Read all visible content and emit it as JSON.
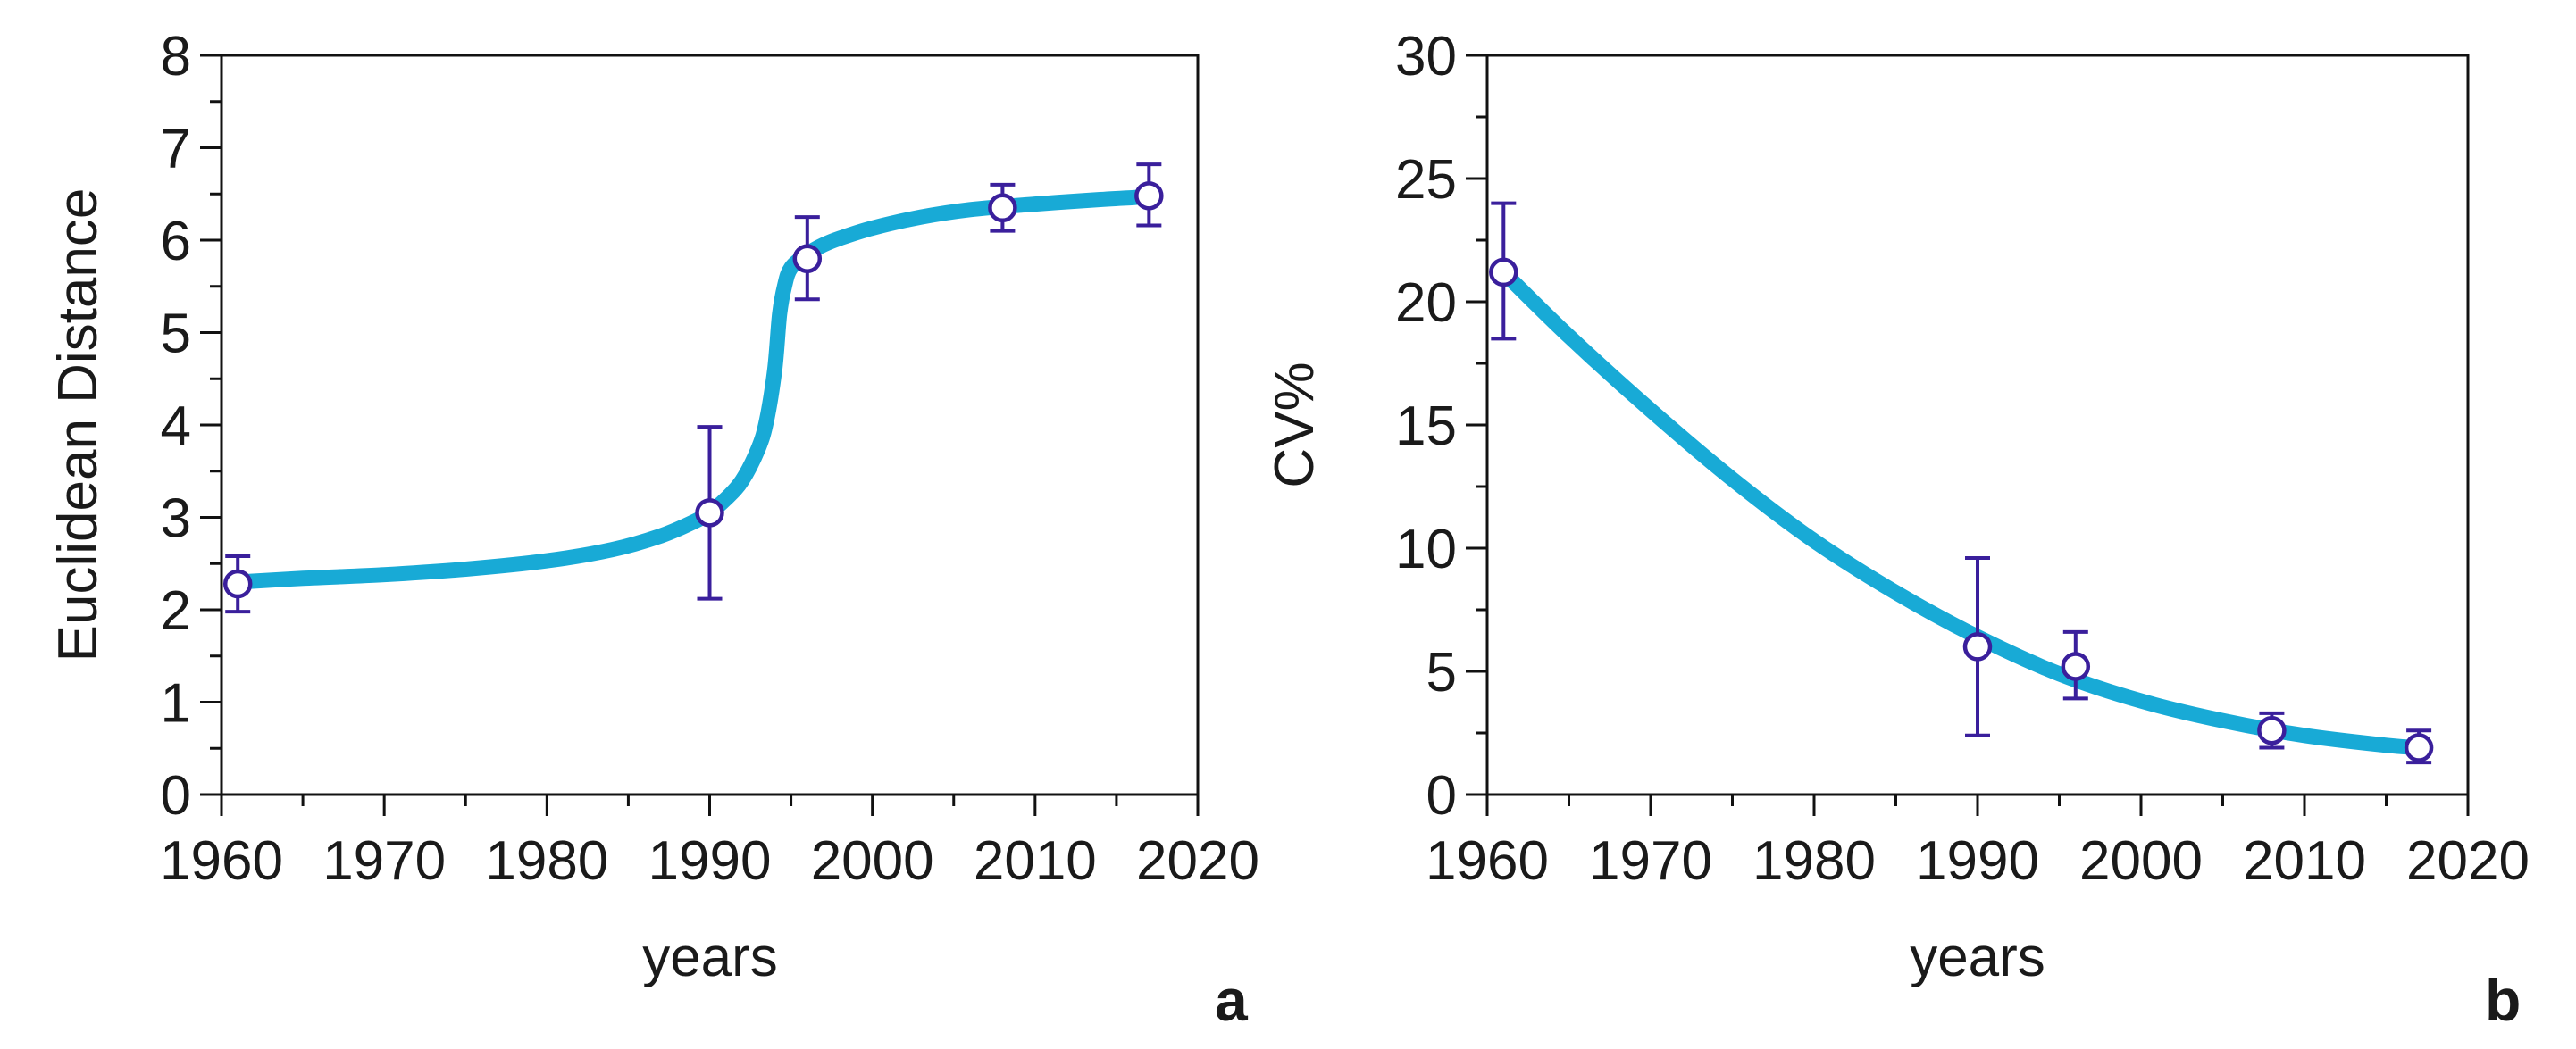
{
  "colors": {
    "fit_line": "#18aad6",
    "points": "#3a1f9c",
    "axis": "#111111"
  },
  "chart_data": [
    {
      "type": "scatter",
      "panel": "a",
      "xlabel": "years",
      "ylabel": "Euclidean Distance",
      "xlim": [
        1960,
        2020
      ],
      "ylim": [
        0,
        8
      ],
      "xticks": [
        1960,
        1970,
        1980,
        1990,
        2000,
        2010,
        2020
      ],
      "yticks": [
        0,
        1,
        2,
        3,
        4,
        5,
        6,
        7,
        8
      ],
      "points": [
        {
          "x": 1961,
          "y": 2.28,
          "err_low": 1.98,
          "err_high": 2.58
        },
        {
          "x": 1990,
          "y": 3.05,
          "err_low": 2.12,
          "err_high": 3.98
        },
        {
          "x": 1996,
          "y": 5.8,
          "err_low": 5.36,
          "err_high": 6.25
        },
        {
          "x": 2008,
          "y": 6.35,
          "err_low": 6.1,
          "err_high": 6.6
        },
        {
          "x": 2017,
          "y": 6.48,
          "err_low": 6.16,
          "err_high": 6.82
        }
      ],
      "fit": {
        "x": [
          1961,
          1965,
          1970,
          1975,
          1980,
          1984,
          1987,
          1989,
          1990,
          1991,
          1992,
          1993,
          1993.5,
          1994,
          1994.3,
          1994.6,
          1995,
          1996,
          1997,
          1998,
          2000,
          2003,
          2006,
          2010,
          2014,
          2017
        ],
        "y": [
          2.3,
          2.34,
          2.38,
          2.44,
          2.53,
          2.65,
          2.8,
          2.95,
          3.05,
          3.2,
          3.4,
          3.75,
          4.05,
          4.6,
          5.2,
          5.5,
          5.7,
          5.85,
          5.95,
          6.02,
          6.13,
          6.25,
          6.33,
          6.39,
          6.44,
          6.47
        ]
      }
    },
    {
      "type": "scatter",
      "panel": "b",
      "xlabel": "years",
      "ylabel": "CV%",
      "xlim": [
        1960,
        2020
      ],
      "ylim": [
        0,
        30
      ],
      "xticks": [
        1960,
        1970,
        1980,
        1990,
        2000,
        2010,
        2020
      ],
      "yticks": [
        0,
        5,
        10,
        15,
        20,
        25,
        30
      ],
      "points": [
        {
          "x": 1961,
          "y": 21.2,
          "err_low": 18.5,
          "err_high": 24.0
        },
        {
          "x": 1990,
          "y": 6.0,
          "err_low": 2.4,
          "err_high": 9.6
        },
        {
          "x": 1996,
          "y": 5.2,
          "err_low": 3.9,
          "err_high": 6.6
        },
        {
          "x": 2008,
          "y": 2.6,
          "err_low": 1.9,
          "err_high": 3.3
        },
        {
          "x": 2017,
          "y": 1.9,
          "err_low": 1.3,
          "err_high": 2.6
        }
      ],
      "fit": {
        "x": [
          1961,
          1965,
          1970,
          1975,
          1980,
          1985,
          1990,
          1995,
          2000,
          2005,
          2010,
          2015,
          2017
        ],
        "y": [
          21.2,
          18.6,
          15.6,
          12.8,
          10.3,
          8.2,
          6.4,
          4.9,
          3.8,
          3.0,
          2.4,
          2.0,
          1.9
        ]
      }
    }
  ]
}
